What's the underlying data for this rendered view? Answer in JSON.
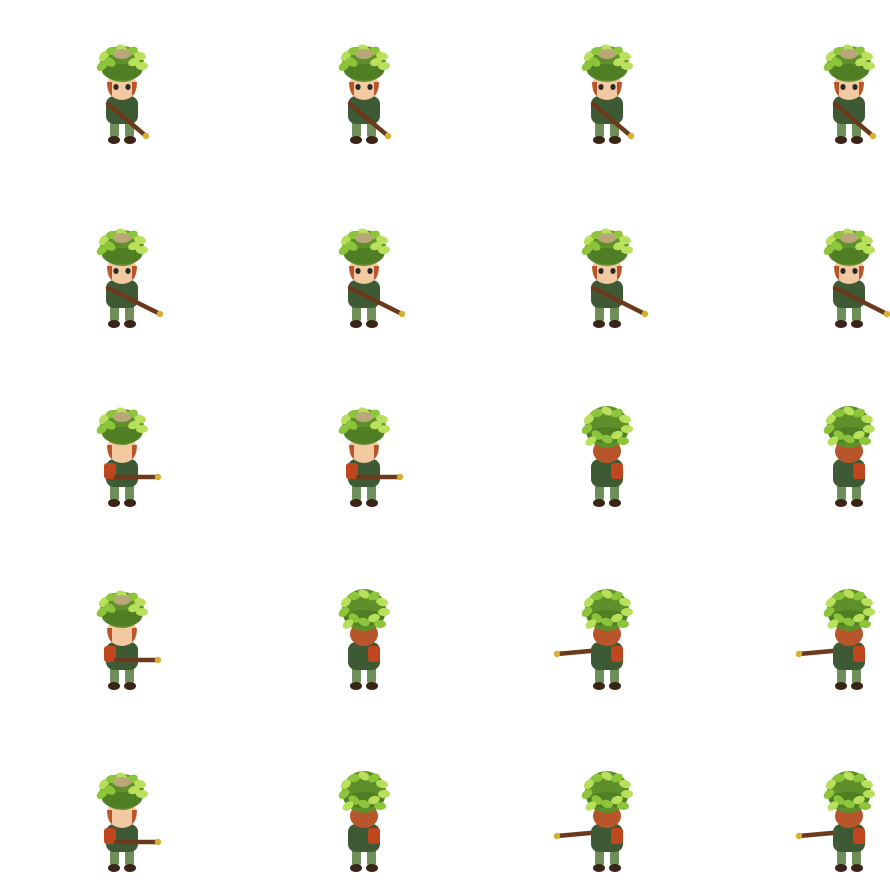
{
  "sheet": {
    "background": "#ffffff",
    "colors": {
      "helmet": "#5f8f2a",
      "helmet_dark": "#3f6a1c",
      "leaf": "#8cc43a",
      "leaf_light": "#b8e05a",
      "nest": "#b9a77a",
      "skin": "#f2c9a0",
      "hair": "#b8552a",
      "uniform": "#3e5a34",
      "uniform_light": "#6f8f5a",
      "boots": "#3a2418",
      "rifle": "#6b3a1c",
      "rifle_tip": "#d8b030",
      "backpack": "#c0461e"
    },
    "rows": [
      {
        "frames": [
          {
            "facing": "front",
            "rifle": "diag-right"
          },
          {
            "facing": "front",
            "rifle": "diag-right"
          },
          {
            "facing": "front",
            "rifle": "diag-right"
          },
          {
            "facing": "front",
            "rifle": "diag-right"
          }
        ]
      },
      {
        "frames": [
          {
            "facing": "front",
            "rifle": "diag-right-long"
          },
          {
            "facing": "front",
            "rifle": "diag-right-long"
          },
          {
            "facing": "front",
            "rifle": "diag-right-long"
          },
          {
            "facing": "front",
            "rifle": "diag-right-long"
          }
        ]
      },
      {
        "frames": [
          {
            "facing": "side",
            "rifle": "right"
          },
          {
            "facing": "side",
            "rifle": "right"
          },
          {
            "facing": "back",
            "rifle": "none"
          },
          {
            "facing": "back",
            "rifle": "none"
          }
        ]
      },
      {
        "frames": [
          {
            "facing": "side",
            "rifle": "right"
          },
          {
            "facing": "back",
            "rifle": "none"
          },
          {
            "facing": "back",
            "rifle": "left"
          },
          {
            "facing": "back",
            "rifle": "left"
          }
        ]
      },
      {
        "frames": [
          {
            "facing": "side",
            "rifle": "right"
          },
          {
            "facing": "back",
            "rifle": "none"
          },
          {
            "facing": "back",
            "rifle": "left"
          },
          {
            "facing": "back",
            "rifle": "left"
          }
        ]
      }
    ]
  }
}
